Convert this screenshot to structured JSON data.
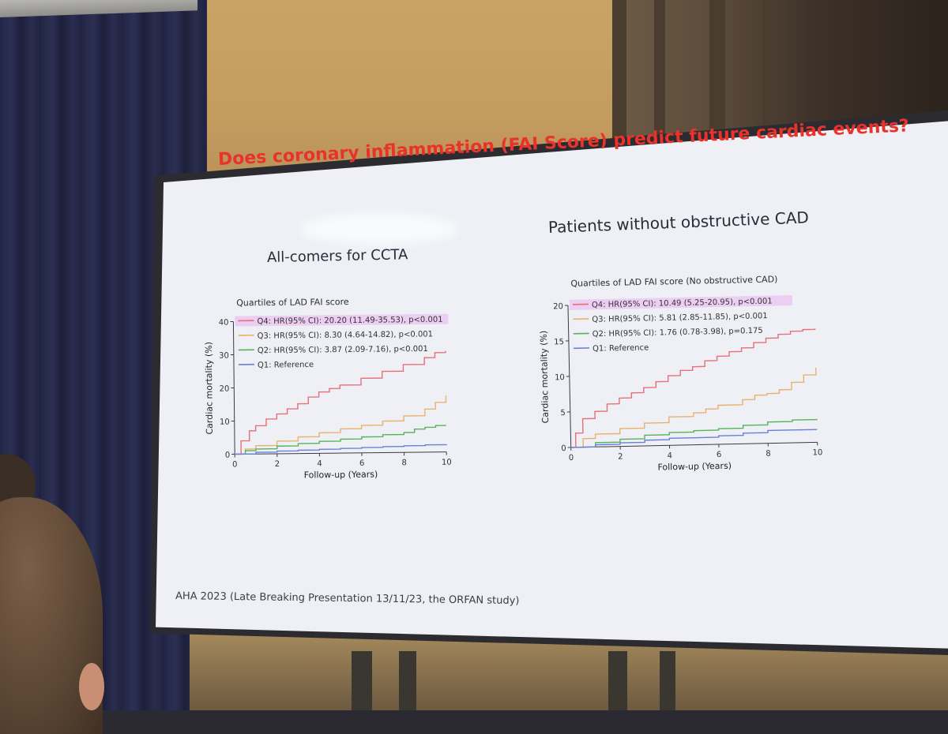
{
  "slide": {
    "title": "Does coronary inflammation (FAI Score) predict future cardiac events?",
    "left_heading": "All-comers for CCTA",
    "right_heading": "Patients without obstructive CAD",
    "footnote": "AHA 2023 (Late Breaking Presentation 13/11/23, the ORFAN study)"
  },
  "colors": {
    "q4": "#e66f78",
    "q3": "#e8b26a",
    "q2": "#57b35a",
    "q1": "#6a7fd8",
    "highlight": "#eac8f0",
    "title": "#e8322b"
  },
  "chart_data": [
    {
      "type": "line",
      "title": "Quartiles of LAD FAI score",
      "xlabel": "Follow-up (Years)",
      "ylabel": "Cardiac mortality (%)",
      "xlim": [
        0,
        10
      ],
      "ylim": [
        0,
        40
      ],
      "xticks": [
        0,
        2,
        4,
        6,
        8,
        10
      ],
      "yticks": [
        0,
        10,
        20,
        30,
        40
      ],
      "legend": "top-left",
      "highlighted_series": "Q4",
      "series": [
        {
          "name": "Q4",
          "color": "#e66f78",
          "legend": "Q4: HR(95% CI): 20.20 (11.49-35.53), p<0.001",
          "x": [
            0,
            0.3,
            0.7,
            1,
            1.5,
            2,
            2.5,
            3,
            3.5,
            4,
            4.5,
            5,
            6,
            7,
            8,
            9,
            9.5,
            10
          ],
          "y": [
            0,
            4,
            7,
            8.5,
            10.5,
            12,
            13.5,
            15,
            17,
            18.5,
            19.5,
            20.5,
            22.5,
            24.5,
            26.5,
            28.5,
            30,
            30.5
          ]
        },
        {
          "name": "Q3",
          "color": "#e8b26a",
          "legend": "Q3: HR(95% CI): 8.30 (4.64-14.82), p<0.001",
          "x": [
            0,
            0.5,
            1,
            2,
            3,
            4,
            5,
            6,
            7,
            8,
            9,
            9.5,
            10
          ],
          "y": [
            0,
            1.5,
            2.5,
            3.8,
            5,
            6.2,
            7.3,
            8.3,
            9.5,
            11,
            13,
            15,
            17
          ]
        },
        {
          "name": "Q2",
          "color": "#57b35a",
          "legend": "Q2: HR(95% CI): 3.87 (2.09-7.16), p<0.001",
          "x": [
            0,
            0.5,
            1,
            2,
            3,
            4,
            5,
            6,
            7,
            8,
            8.5,
            9,
            9.5,
            10
          ],
          "y": [
            0,
            1,
            1.5,
            2.3,
            3,
            3.6,
            4.2,
            4.8,
            5.4,
            6,
            7,
            7.5,
            8,
            8
          ]
        },
        {
          "name": "Q1",
          "color": "#6a7fd8",
          "legend": "Q1: Reference",
          "x": [
            0,
            1,
            2,
            3,
            4,
            5,
            6,
            7,
            8,
            9,
            10
          ],
          "y": [
            0,
            0.5,
            0.8,
            1,
            1.2,
            1.4,
            1.6,
            1.8,
            2,
            2.2,
            2.3
          ]
        }
      ]
    },
    {
      "type": "line",
      "title": "Quartiles of LAD FAI score (No obstructive CAD)",
      "xlabel": "Follow-up (Years)",
      "ylabel": "Cardiac mortality (%)",
      "xlim": [
        0,
        10
      ],
      "ylim": [
        0,
        20
      ],
      "xticks": [
        0,
        2,
        4,
        6,
        8,
        10
      ],
      "yticks": [
        0,
        5,
        10,
        15,
        20
      ],
      "legend": "top-left",
      "highlighted_series": "Q4",
      "series": [
        {
          "name": "Q4",
          "color": "#e66f78",
          "legend": "Q4: HR(95% CI): 10.49 (5.25-20.95), p<0.001",
          "x": [
            0,
            0.2,
            0.5,
            1,
            1.5,
            2,
            2.5,
            3,
            3.5,
            4,
            4.5,
            5,
            5.5,
            6,
            6.5,
            7,
            7.5,
            8,
            8.5,
            9,
            9.5,
            10
          ],
          "y": [
            0,
            2,
            4,
            5,
            6,
            6.8,
            7.5,
            8.2,
            9,
            9.8,
            10.5,
            11,
            11.8,
            12.4,
            13,
            13.5,
            14.2,
            14.8,
            15.3,
            15.7,
            15.9,
            16
          ]
        },
        {
          "name": "Q3",
          "color": "#e8b26a",
          "legend": "Q3: HR(95% CI): 5.81 (2.85-11.85), p<0.001",
          "x": [
            0,
            0.5,
            1,
            2,
            3,
            4,
            5,
            5.5,
            6,
            7,
            7.5,
            8,
            8.5,
            9,
            9.5,
            10
          ],
          "y": [
            0,
            1.2,
            1.8,
            2.5,
            3.2,
            4,
            4.5,
            5,
            5.5,
            6.2,
            6.8,
            7,
            7.5,
            8.5,
            9.5,
            10.5
          ]
        },
        {
          "name": "Q2",
          "color": "#57b35a",
          "legend": "Q2: HR(95% CI): 1.76 (0.78-3.98), p=0.175",
          "x": [
            0,
            1,
            2,
            3,
            4,
            5,
            6,
            7,
            8,
            9,
            10
          ],
          "y": [
            0,
            0.6,
            1,
            1.5,
            1.8,
            2,
            2.2,
            2.6,
            3,
            3.2,
            3.3
          ]
        },
        {
          "name": "Q1",
          "color": "#6a7fd8",
          "legend": "Q1: Reference",
          "x": [
            0,
            1,
            2,
            3,
            4,
            5,
            6,
            7,
            8,
            9,
            10
          ],
          "y": [
            0,
            0.3,
            0.5,
            0.8,
            1,
            1,
            1.2,
            1.5,
            1.8,
            1.8,
            1.8
          ]
        }
      ]
    }
  ]
}
